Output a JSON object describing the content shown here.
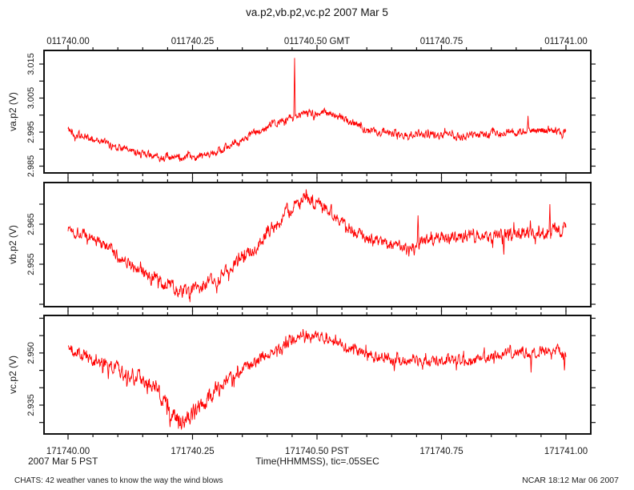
{
  "title": "va.p2,vb.p2,vc.p2 2007 Mar 5",
  "footer": {
    "left": "CHATS: 42 weather vanes to know the way the wind blows",
    "right": "NCAR 18:12 Mar 06 2007"
  },
  "chart_data": {
    "type": "line",
    "title": "va.p2,vb.p2,vc.p2 2007 Mar 5",
    "line_color": "#ff0000",
    "axis_color": "#111111",
    "grid": false,
    "legend": "none",
    "x_axis": {
      "xlim": [
        0,
        1
      ],
      "minor_tick_step": 0.05,
      "major_tick_step": 0.25,
      "xlabel": "Time(HHMMSS), tic=.05SEC",
      "date_label": "2007 Mar  5 PST",
      "top_ticks": [
        {
          "pos": 0.0,
          "label": "011740.00"
        },
        {
          "pos": 0.25,
          "label": "011740.25"
        },
        {
          "pos": 0.5,
          "label": "011740.50 GMT"
        },
        {
          "pos": 0.75,
          "label": "011740.75"
        },
        {
          "pos": 1.0,
          "label": "011741.00"
        }
      ],
      "bottom_ticks": [
        {
          "pos": 0.0,
          "label": "171740.00"
        },
        {
          "pos": 0.25,
          "label": "171740.25"
        },
        {
          "pos": 0.5,
          "label": "171740.50 PST"
        },
        {
          "pos": 0.75,
          "label": "171740.75"
        },
        {
          "pos": 1.0,
          "label": "171741.00"
        }
      ]
    },
    "panels": [
      {
        "name": "va.p2",
        "ylabel": "va.p2 (V)",
        "ylim": [
          2.983,
          3.019
        ],
        "ytick_step": 0.005,
        "ytick_labels": [
          {
            "value": 3.015,
            "label": "3.015"
          },
          {
            "value": 3.005,
            "label": "3.005"
          },
          {
            "value": 2.995,
            "label": "2.995"
          },
          {
            "value": 2.985,
            "label": "2.985"
          }
        ],
        "seed": 42,
        "noise_amp": [
          [
            0,
            0.0009
          ],
          [
            1,
            0.0009
          ]
        ],
        "anchors": [
          [
            0,
            2.9958
          ],
          [
            0.015,
            2.9942
          ],
          [
            0.05,
            2.993
          ],
          [
            0.09,
            2.9912
          ],
          [
            0.13,
            2.9895
          ],
          [
            0.17,
            2.988
          ],
          [
            0.2,
            2.9873
          ],
          [
            0.23,
            2.9872
          ],
          [
            0.26,
            2.9878
          ],
          [
            0.3,
            2.9895
          ],
          [
            0.34,
            2.992
          ],
          [
            0.38,
            2.995
          ],
          [
            0.42,
            2.9978
          ],
          [
            0.45,
            2.9995
          ],
          [
            0.48,
            3.0006
          ],
          [
            0.51,
            3.0008
          ],
          [
            0.54,
            2.9998
          ],
          [
            0.57,
            2.998
          ],
          [
            0.6,
            2.9958
          ],
          [
            0.63,
            2.9948
          ],
          [
            0.67,
            2.9942
          ],
          [
            0.72,
            2.9945
          ],
          [
            0.76,
            2.994
          ],
          [
            0.8,
            2.9938
          ],
          [
            0.84,
            2.9945
          ],
          [
            0.88,
            2.995
          ],
          [
            0.92,
            2.9952
          ],
          [
            0.96,
            2.9955
          ],
          [
            1,
            2.9952
          ]
        ],
        "spikes": [
          {
            "x": 0.455,
            "value": 3.0168
          },
          {
            "x": 0.924,
            "value": 2.9998
          }
        ]
      },
      {
        "name": "vb.p2",
        "ylabel": "vb.p2 (V)",
        "ylim": [
          2.9444,
          2.9754
        ],
        "ytick_step": 0.005,
        "ytick_labels": [
          {
            "value": 2.965,
            "label": "2.965"
          },
          {
            "value": 2.955,
            "label": "2.955"
          }
        ],
        "seed": 1337,
        "noise_amp": [
          [
            0,
            0.0012
          ],
          [
            0.45,
            0.0014
          ],
          [
            0.62,
            0.0011
          ],
          [
            0.75,
            0.0013
          ],
          [
            1,
            0.0014
          ]
        ],
        "anchors": [
          [
            0,
            2.964
          ],
          [
            0.02,
            2.963
          ],
          [
            0.05,
            2.9612
          ],
          [
            0.08,
            2.959
          ],
          [
            0.11,
            2.9565
          ],
          [
            0.14,
            2.9538
          ],
          [
            0.17,
            2.9515
          ],
          [
            0.2,
            2.9495
          ],
          [
            0.23,
            2.9483
          ],
          [
            0.26,
            2.9488
          ],
          [
            0.29,
            2.9505
          ],
          [
            0.32,
            2.953
          ],
          [
            0.35,
            2.9565
          ],
          [
            0.38,
            2.96
          ],
          [
            0.41,
            2.964
          ],
          [
            0.44,
            2.968
          ],
          [
            0.46,
            2.97
          ],
          [
            0.48,
            2.971
          ],
          [
            0.5,
            2.9706
          ],
          [
            0.52,
            2.969
          ],
          [
            0.55,
            2.966
          ],
          [
            0.58,
            2.963
          ],
          [
            0.61,
            2.9612
          ],
          [
            0.64,
            2.96
          ],
          [
            0.68,
            2.9595
          ],
          [
            0.72,
            2.9608
          ],
          [
            0.76,
            2.9618
          ],
          [
            0.8,
            2.962
          ],
          [
            0.84,
            2.9618
          ],
          [
            0.88,
            2.9622
          ],
          [
            0.92,
            2.9628
          ],
          [
            0.96,
            2.9632
          ],
          [
            1,
            2.9638
          ]
        ],
        "spikes": [
          {
            "x": 0.695,
            "value": 2.9572
          },
          {
            "x": 0.703,
            "value": 2.9672
          },
          {
            "x": 0.875,
            "value": 2.9574
          },
          {
            "x": 0.968,
            "value": 2.97
          }
        ]
      },
      {
        "name": "vc.p2",
        "ylabel": "vc.p2 (V)",
        "ylim": [
          2.9267,
          2.9608
        ],
        "ytick_step": 0.005,
        "ytick_labels": [
          {
            "value": 2.95,
            "label": "2.950"
          },
          {
            "value": 2.935,
            "label": "2.935"
          }
        ],
        "seed": 2024,
        "noise_amp": [
          [
            0,
            0.0014
          ],
          [
            0.15,
            0.0018
          ],
          [
            0.22,
            0.0024
          ],
          [
            0.3,
            0.0016
          ],
          [
            0.4,
            0.0012
          ],
          [
            0.7,
            0.0012
          ],
          [
            1,
            0.0013
          ]
        ],
        "anchors": [
          [
            0,
            2.9512
          ],
          [
            0.03,
            2.9492
          ],
          [
            0.06,
            2.9475
          ],
          [
            0.09,
            2.9458
          ],
          [
            0.12,
            2.944
          ],
          [
            0.15,
            2.942
          ],
          [
            0.175,
            2.94
          ],
          [
            0.195,
            2.937
          ],
          [
            0.21,
            2.933
          ],
          [
            0.22,
            2.9305
          ],
          [
            0.23,
            2.9295
          ],
          [
            0.24,
            2.931
          ],
          [
            0.255,
            2.933
          ],
          [
            0.27,
            2.9345
          ],
          [
            0.285,
            2.9372
          ],
          [
            0.3,
            2.94
          ],
          [
            0.33,
            2.943
          ],
          [
            0.36,
            2.946
          ],
          [
            0.39,
            2.9485
          ],
          [
            0.42,
            2.951
          ],
          [
            0.45,
            2.9538
          ],
          [
            0.475,
            2.9555
          ],
          [
            0.5,
            2.955
          ],
          [
            0.53,
            2.9538
          ],
          [
            0.56,
            2.952
          ],
          [
            0.59,
            2.9502
          ],
          [
            0.62,
            2.9488
          ],
          [
            0.66,
            2.9478
          ],
          [
            0.7,
            2.9482
          ],
          [
            0.74,
            2.9476
          ],
          [
            0.78,
            2.9482
          ],
          [
            0.82,
            2.9478
          ],
          [
            0.86,
            2.949
          ],
          [
            0.9,
            2.9498
          ],
          [
            0.94,
            2.9502
          ],
          [
            0.98,
            2.9508
          ],
          [
            1,
            2.9495
          ]
        ],
        "spikes": [
          {
            "x": 0.205,
            "value": 2.9287
          },
          {
            "x": 0.233,
            "value": 2.9285
          },
          {
            "x": 0.655,
            "value": 2.9448
          },
          {
            "x": 0.78,
            "value": 2.945
          },
          {
            "x": 0.93,
            "value": 2.9444
          },
          {
            "x": 0.997,
            "value": 2.945
          }
        ]
      }
    ]
  }
}
